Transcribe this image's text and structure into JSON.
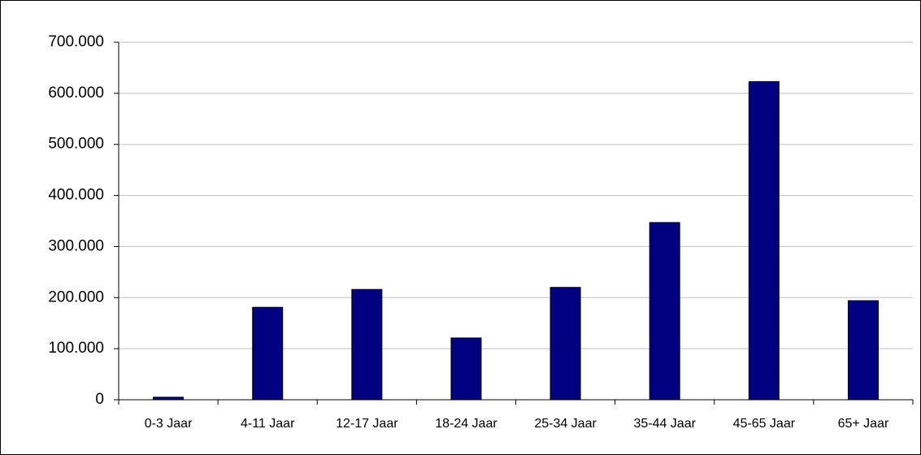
{
  "chart_data": {
    "type": "bar",
    "categories": [
      "0-3 Jaar",
      "4-11 Jaar",
      "12-17 Jaar",
      "18-24 Jaar",
      "25-34 Jaar",
      "35-44 Jaar",
      "45-65 Jaar",
      "65+ Jaar"
    ],
    "values": [
      5000,
      181000,
      216000,
      121000,
      220000,
      347000,
      623000,
      194000
    ],
    "color": "#000080",
    "ylim": [
      0,
      700000
    ],
    "yticks": [
      0,
      {
        "value": 100000,
        "label": "100.000"
      },
      {
        "value": 200000,
        "label": "200.000"
      },
      {
        "value": 300000,
        "label": "300.000"
      },
      {
        "value": 400000,
        "label": "400.000"
      },
      {
        "value": 500000,
        "label": "500.000"
      },
      {
        "value": 600000,
        "label": "600.000"
      },
      {
        "value": 700000,
        "label": "700.000"
      }
    ],
    "grid": true
  }
}
